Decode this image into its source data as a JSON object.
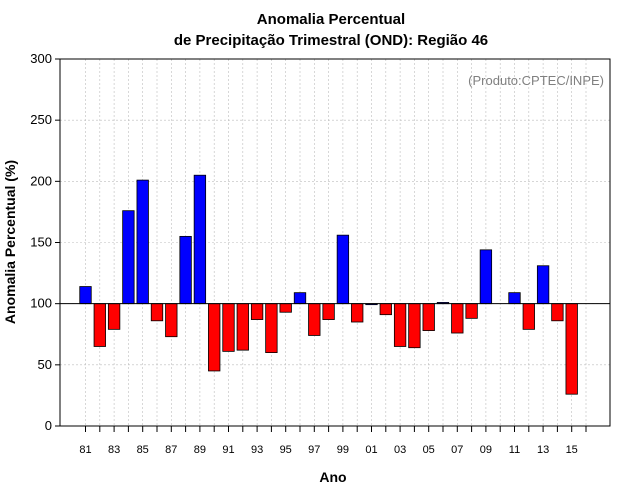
{
  "chart_data": {
    "type": "bar",
    "title": "Anomalia Percentual",
    "subtitle": "de Precipitação Trimestral (OND): Região 46",
    "credit": "(Produto:CPTEC/INPE)",
    "xlabel": "Ano",
    "ylabel": "Anomalia Percentual (%)",
    "ylim": [
      0,
      300
    ],
    "yticks": [
      0,
      50,
      100,
      150,
      200,
      250,
      300
    ],
    "baseline": 100,
    "grid": true,
    "colors": {
      "above": "#0000ff",
      "below": "#ff0000",
      "frame": "#000000",
      "grid": "#bdbdbd"
    },
    "years": [
      "81",
      "82",
      "83",
      "84",
      "85",
      "86",
      "87",
      "88",
      "89",
      "90",
      "91",
      "92",
      "93",
      "94",
      "95",
      "96",
      "97",
      "98",
      "99",
      "00",
      "01",
      "02",
      "03",
      "04",
      "05",
      "06",
      "07",
      "08",
      "09",
      "10",
      "11",
      "12",
      "13",
      "14",
      "15",
      "16"
    ],
    "xtick_labels": [
      "81",
      "83",
      "85",
      "87",
      "89",
      "91",
      "93",
      "95",
      "97",
      "99",
      "01",
      "03",
      "05",
      "07",
      "09",
      "11",
      "13",
      "15"
    ],
    "values": [
      114,
      65,
      79,
      176,
      201,
      86,
      73,
      155,
      205,
      45,
      61,
      62,
      87,
      60,
      93,
      109,
      74,
      87,
      156,
      85,
      100,
      91,
      65,
      64,
      78,
      101,
      76,
      88,
      144,
      null,
      109,
      79,
      131,
      86,
      26,
      null
    ]
  }
}
